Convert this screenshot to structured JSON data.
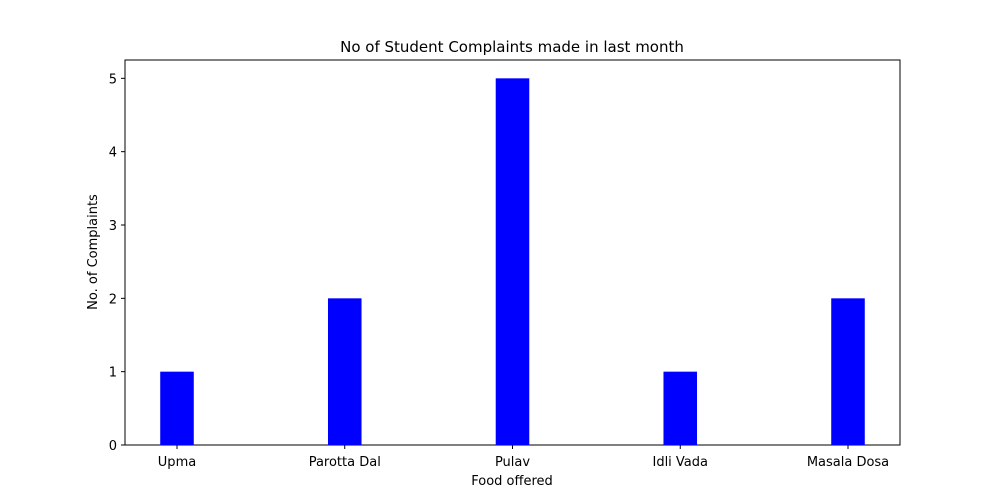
{
  "chart_data": {
    "type": "bar",
    "title": "No of Student Complaints made in last month",
    "xlabel": "Food offered",
    "ylabel": "No. of Complaints",
    "categories": [
      "Upma",
      "Parotta Dal",
      "Pulav",
      "Idli Vada",
      "Masala Dosa"
    ],
    "values": [
      1,
      2,
      5,
      1,
      2
    ],
    "ylim": [
      0,
      5.25
    ],
    "yticks": [
      "0",
      "1",
      "2",
      "3",
      "4",
      "5"
    ],
    "grid": false,
    "bar_color": "#0000ff"
  }
}
